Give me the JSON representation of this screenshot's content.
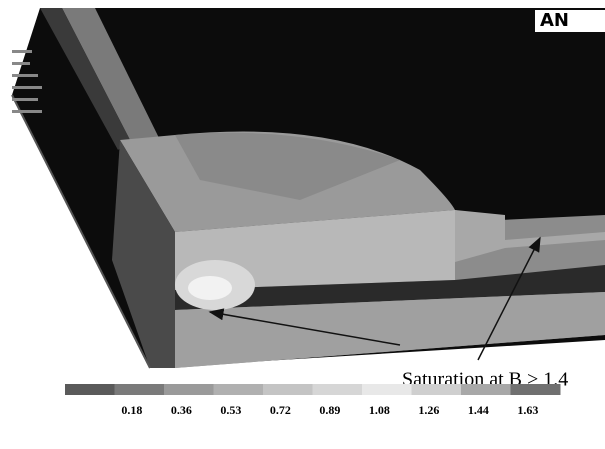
{
  "logo": "AN",
  "annotation": "Saturation at B > 1.4",
  "colorbar": {
    "labels": [
      "0.18",
      "0.36",
      "0.53",
      "0.72",
      "0.89",
      "1.08",
      "1.26",
      "1.44",
      "1.63"
    ]
  }
}
